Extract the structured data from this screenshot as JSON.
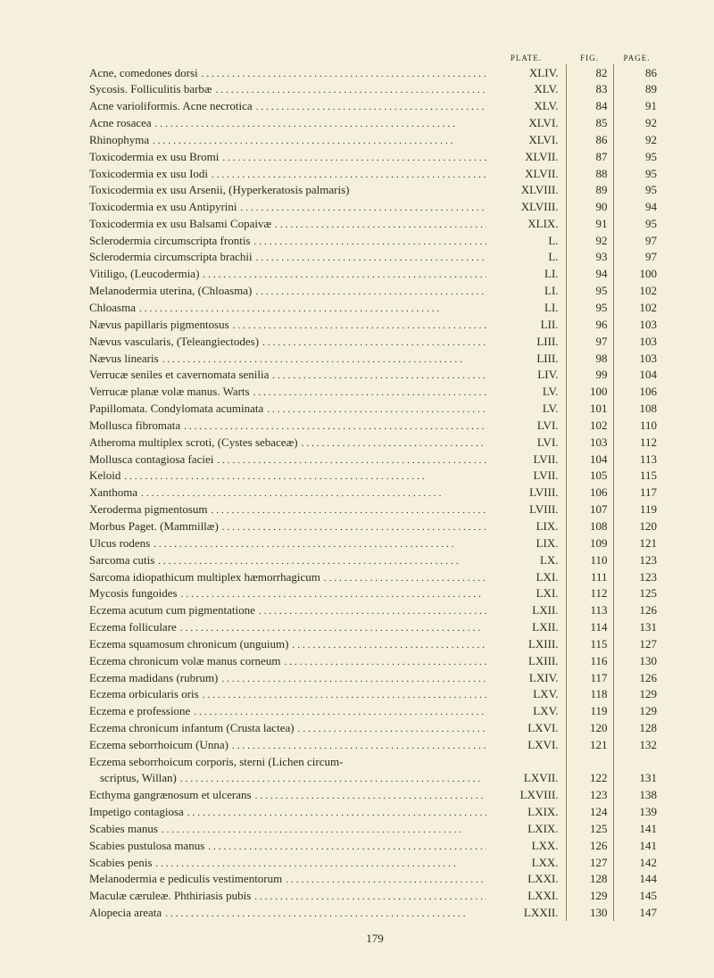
{
  "headers": {
    "plate": "PLATE.",
    "fig": "FIG.",
    "page": "PAGE."
  },
  "page_number": "179",
  "entries": [
    {
      "title": "Acne, comedones dorsi",
      "plate": "XLIV.",
      "fig": "82",
      "page": "86",
      "indent": false
    },
    {
      "title": "Sycosis.  Folliculitis barbæ",
      "plate": "XLV.",
      "fig": "83",
      "page": "89",
      "indent": false
    },
    {
      "title": "Acne varioliformis.  Acne necrotica",
      "plate": "XLV.",
      "fig": "84",
      "page": "91",
      "indent": false
    },
    {
      "title": "Acne rosacea",
      "plate": "XLVI.",
      "fig": "85",
      "page": "92",
      "indent": false
    },
    {
      "title": "Rhinophyma",
      "plate": "XLVI.",
      "fig": "86",
      "page": "92",
      "indent": false
    },
    {
      "title": "Toxicodermia ex usu Bromi",
      "plate": "XLVII.",
      "fig": "87",
      "page": "95",
      "indent": false
    },
    {
      "title": "Toxicodermia ex usu Iodi",
      "plate": "XLVII.",
      "fig": "88",
      "page": "95",
      "indent": false
    },
    {
      "title": "Toxicodermia ex usu Arsenii, (Hyperkeratosis palmaris)",
      "plate": "XLVIII.",
      "fig": "89",
      "page": "95",
      "indent": false,
      "nodots": true
    },
    {
      "title": "Toxicodermia ex usu Antipyrini",
      "plate": "XLVIII.",
      "fig": "90",
      "page": "94",
      "indent": false
    },
    {
      "title": "Toxicodermia ex usu Balsami Copaivæ",
      "plate": "XLIX.",
      "fig": "91",
      "page": "95",
      "indent": false
    },
    {
      "title": "Sclerodermia circumscripta frontis",
      "plate": "L.",
      "fig": "92",
      "page": "97",
      "indent": false
    },
    {
      "title": "Sclerodermia circumscripta brachii",
      "plate": "L.",
      "fig": "93",
      "page": "97",
      "indent": false
    },
    {
      "title": "Vitiligo, (Leucodermia)",
      "plate": "LI.",
      "fig": "94",
      "page": "100",
      "indent": false
    },
    {
      "title": "Melanodermia uterina, (Chloasma)",
      "plate": "LI.",
      "fig": "95",
      "page": "102",
      "indent": false
    },
    {
      "title": "Chloasma",
      "plate": "LI.",
      "fig": "95",
      "page": "102",
      "indent": false
    },
    {
      "title": "Nævus papillaris pigmentosus",
      "plate": "LII.",
      "fig": "96",
      "page": "103",
      "indent": false
    },
    {
      "title": "Nævus vascularis, (Teleangiectodes)",
      "plate": "LIII.",
      "fig": "97",
      "page": "103",
      "indent": false
    },
    {
      "title": "Nævus linearis",
      "plate": "LIII.",
      "fig": "98",
      "page": "103",
      "indent": false
    },
    {
      "title": "Verrucæ seniles et cavernomata senilia",
      "plate": "LIV.",
      "fig": "99",
      "page": "104",
      "indent": false
    },
    {
      "title": "Verrucæ planæ volæ manus.  Warts",
      "plate": "LV.",
      "fig": "100",
      "page": "106",
      "indent": false
    },
    {
      "title": "Papillomata.  Condylomata acuminata",
      "plate": "LV.",
      "fig": "101",
      "page": "108",
      "indent": false
    },
    {
      "title": "Mollusca fibromata",
      "plate": "LVI.",
      "fig": "102",
      "page": "110",
      "indent": false
    },
    {
      "title": "Atheroma multiplex scroti, (Cystes sebaceæ)",
      "plate": "LVI.",
      "fig": "103",
      "page": "112",
      "indent": false
    },
    {
      "title": "Mollusca contagiosa faciei",
      "plate": "LVII.",
      "fig": "104",
      "page": "113",
      "indent": false
    },
    {
      "title": "Keloid",
      "plate": "LVII.",
      "fig": "105",
      "page": "115",
      "indent": false
    },
    {
      "title": "Xanthoma",
      "plate": "LVIII.",
      "fig": "106",
      "page": "117",
      "indent": false
    },
    {
      "title": "Xeroderma pigmentosum",
      "plate": "LVIII.",
      "fig": "107",
      "page": "119",
      "indent": false
    },
    {
      "title": "Morbus Paget.  (Mammillæ)",
      "plate": "LIX.",
      "fig": "108",
      "page": "120",
      "indent": false
    },
    {
      "title": "Ulcus rodens",
      "plate": "LIX.",
      "fig": "109",
      "page": "121",
      "indent": false
    },
    {
      "title": "Sarcoma cutis",
      "plate": "LX.",
      "fig": "110",
      "page": "123",
      "indent": false
    },
    {
      "title": "Sarcoma idiopathicum multiplex hæmorrhagicum",
      "plate": "LXI.",
      "fig": "111",
      "page": "123",
      "indent": false
    },
    {
      "title": "Mycosis fungoides",
      "plate": "LXI.",
      "fig": "112",
      "page": "125",
      "indent": false
    },
    {
      "title": "Eczema acutum cum pigmentatione",
      "plate": "LXII.",
      "fig": "113",
      "page": "126",
      "indent": false
    },
    {
      "title": "Eczema folliculare",
      "plate": "LXII.",
      "fig": "114",
      "page": "131",
      "indent": false
    },
    {
      "title": "Eczema squamosum chronicum (unguium)",
      "plate": "LXIII.",
      "fig": "115",
      "page": "127",
      "indent": false
    },
    {
      "title": "Eczema chronicum volæ manus corneum",
      "plate": "LXIII.",
      "fig": "116",
      "page": "130",
      "indent": false
    },
    {
      "title": "Eczema madidans (rubrum)",
      "plate": "LXIV.",
      "fig": "117",
      "page": "126",
      "indent": false
    },
    {
      "title": "Eczema orbicularis oris",
      "plate": "LXV.",
      "fig": "118",
      "page": "129",
      "indent": false
    },
    {
      "title": "Eczema e professione",
      "plate": "LXV.",
      "fig": "119",
      "page": "129",
      "indent": false
    },
    {
      "title": "Eczema chronicum infantum (Crusta lactea)",
      "plate": "LXVI.",
      "fig": "120",
      "page": "128",
      "indent": false
    },
    {
      "title": "Eczema seborrhoicum (Unna)",
      "plate": "LXVI.",
      "fig": "121",
      "page": "132",
      "indent": false
    },
    {
      "title": "Eczema seborrhoicum corporis, sterni (Lichen circum-",
      "plate": "",
      "fig": "",
      "page": "",
      "indent": false,
      "nodots": true
    },
    {
      "title": "scriptus, Willan)",
      "plate": "LXVII.",
      "fig": "122",
      "page": "131",
      "indent": true
    },
    {
      "title": "Ecthyma gangrænosum et ulcerans",
      "plate": "LXVIII.",
      "fig": "123",
      "page": "138",
      "indent": false
    },
    {
      "title": "Impetigo contagiosa",
      "plate": "LXIX.",
      "fig": "124",
      "page": "139",
      "indent": false
    },
    {
      "title": "Scabies manus",
      "plate": "LXIX.",
      "fig": "125",
      "page": "141",
      "indent": false
    },
    {
      "title": "Scabies pustulosa manus",
      "plate": "LXX.",
      "fig": "126",
      "page": "141",
      "indent": false
    },
    {
      "title": "Scabies penis",
      "plate": "LXX.",
      "fig": "127",
      "page": "142",
      "indent": false
    },
    {
      "title": "Melanodermia e pediculis vestimentorum",
      "plate": "LXXI.",
      "fig": "128",
      "page": "144",
      "indent": false
    },
    {
      "title": "Maculæ cæruleæ.  Phthiriasis pubis",
      "plate": "LXXI.",
      "fig": "129",
      "page": "145",
      "indent": false
    },
    {
      "title": "Alopecia areata",
      "plate": "LXXII.",
      "fig": "130",
      "page": "147",
      "indent": false
    }
  ]
}
